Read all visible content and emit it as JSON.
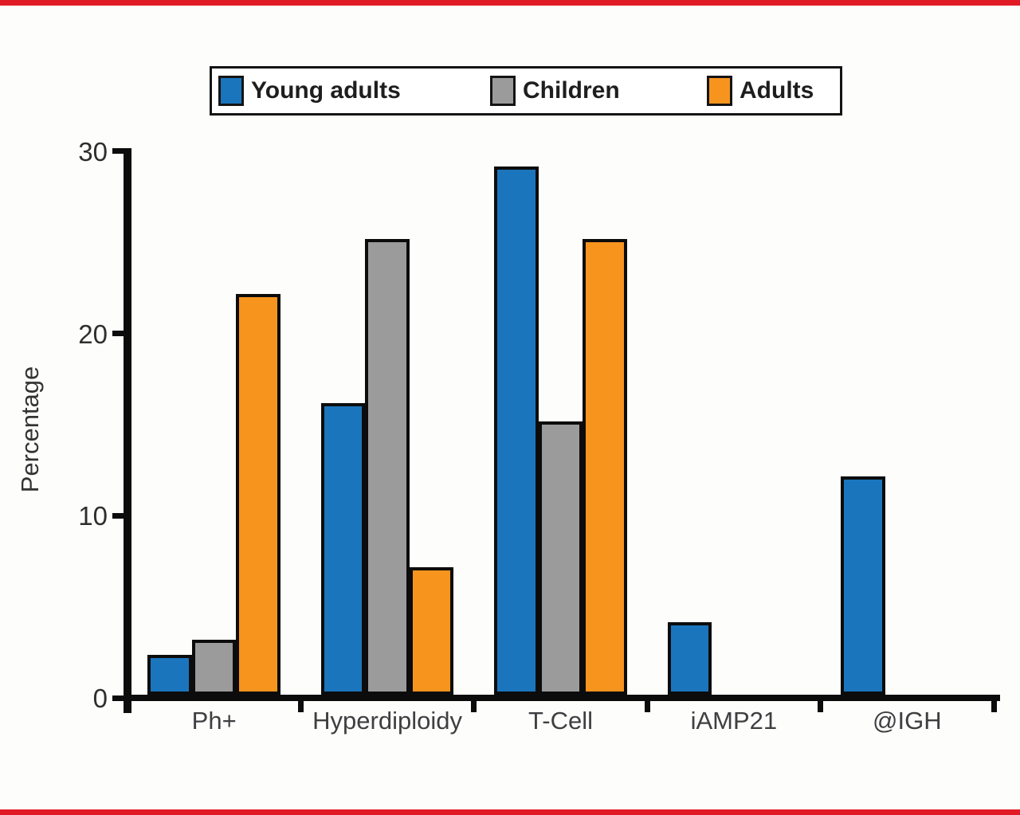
{
  "page": {
    "background": "#fdfdfc",
    "accent_rule_color": "#e11b26"
  },
  "legend": {
    "items": [
      {
        "label": "Young adults",
        "color": "#1b75bc"
      },
      {
        "label": "Children",
        "color": "#9b9b9b"
      },
      {
        "label": "Adults",
        "color": "#f7941e"
      }
    ]
  },
  "chart_data": {
    "type": "bar",
    "title": "",
    "ylabel": "Percentage",
    "xlabel": "",
    "categories": [
      "Ph+",
      "Hyperdiploidy",
      "T-Cell",
      "iAMP21",
      "@IGH"
    ],
    "series": [
      {
        "name": "Young adults",
        "color": "#1b75bc",
        "values": [
          2.2,
          16,
          29,
          4,
          12
        ]
      },
      {
        "name": "Children",
        "color": "#9b9b9b",
        "values": [
          3,
          25,
          15,
          0,
          0
        ]
      },
      {
        "name": "Adults",
        "color": "#f7941e",
        "values": [
          22,
          7,
          25,
          0,
          0
        ]
      }
    ],
    "ylim": [
      0,
      30
    ],
    "yticks": [
      0,
      10,
      20,
      30
    ],
    "grid": false,
    "legend_position": "top",
    "bar_border_color": "#0c0c0c"
  }
}
